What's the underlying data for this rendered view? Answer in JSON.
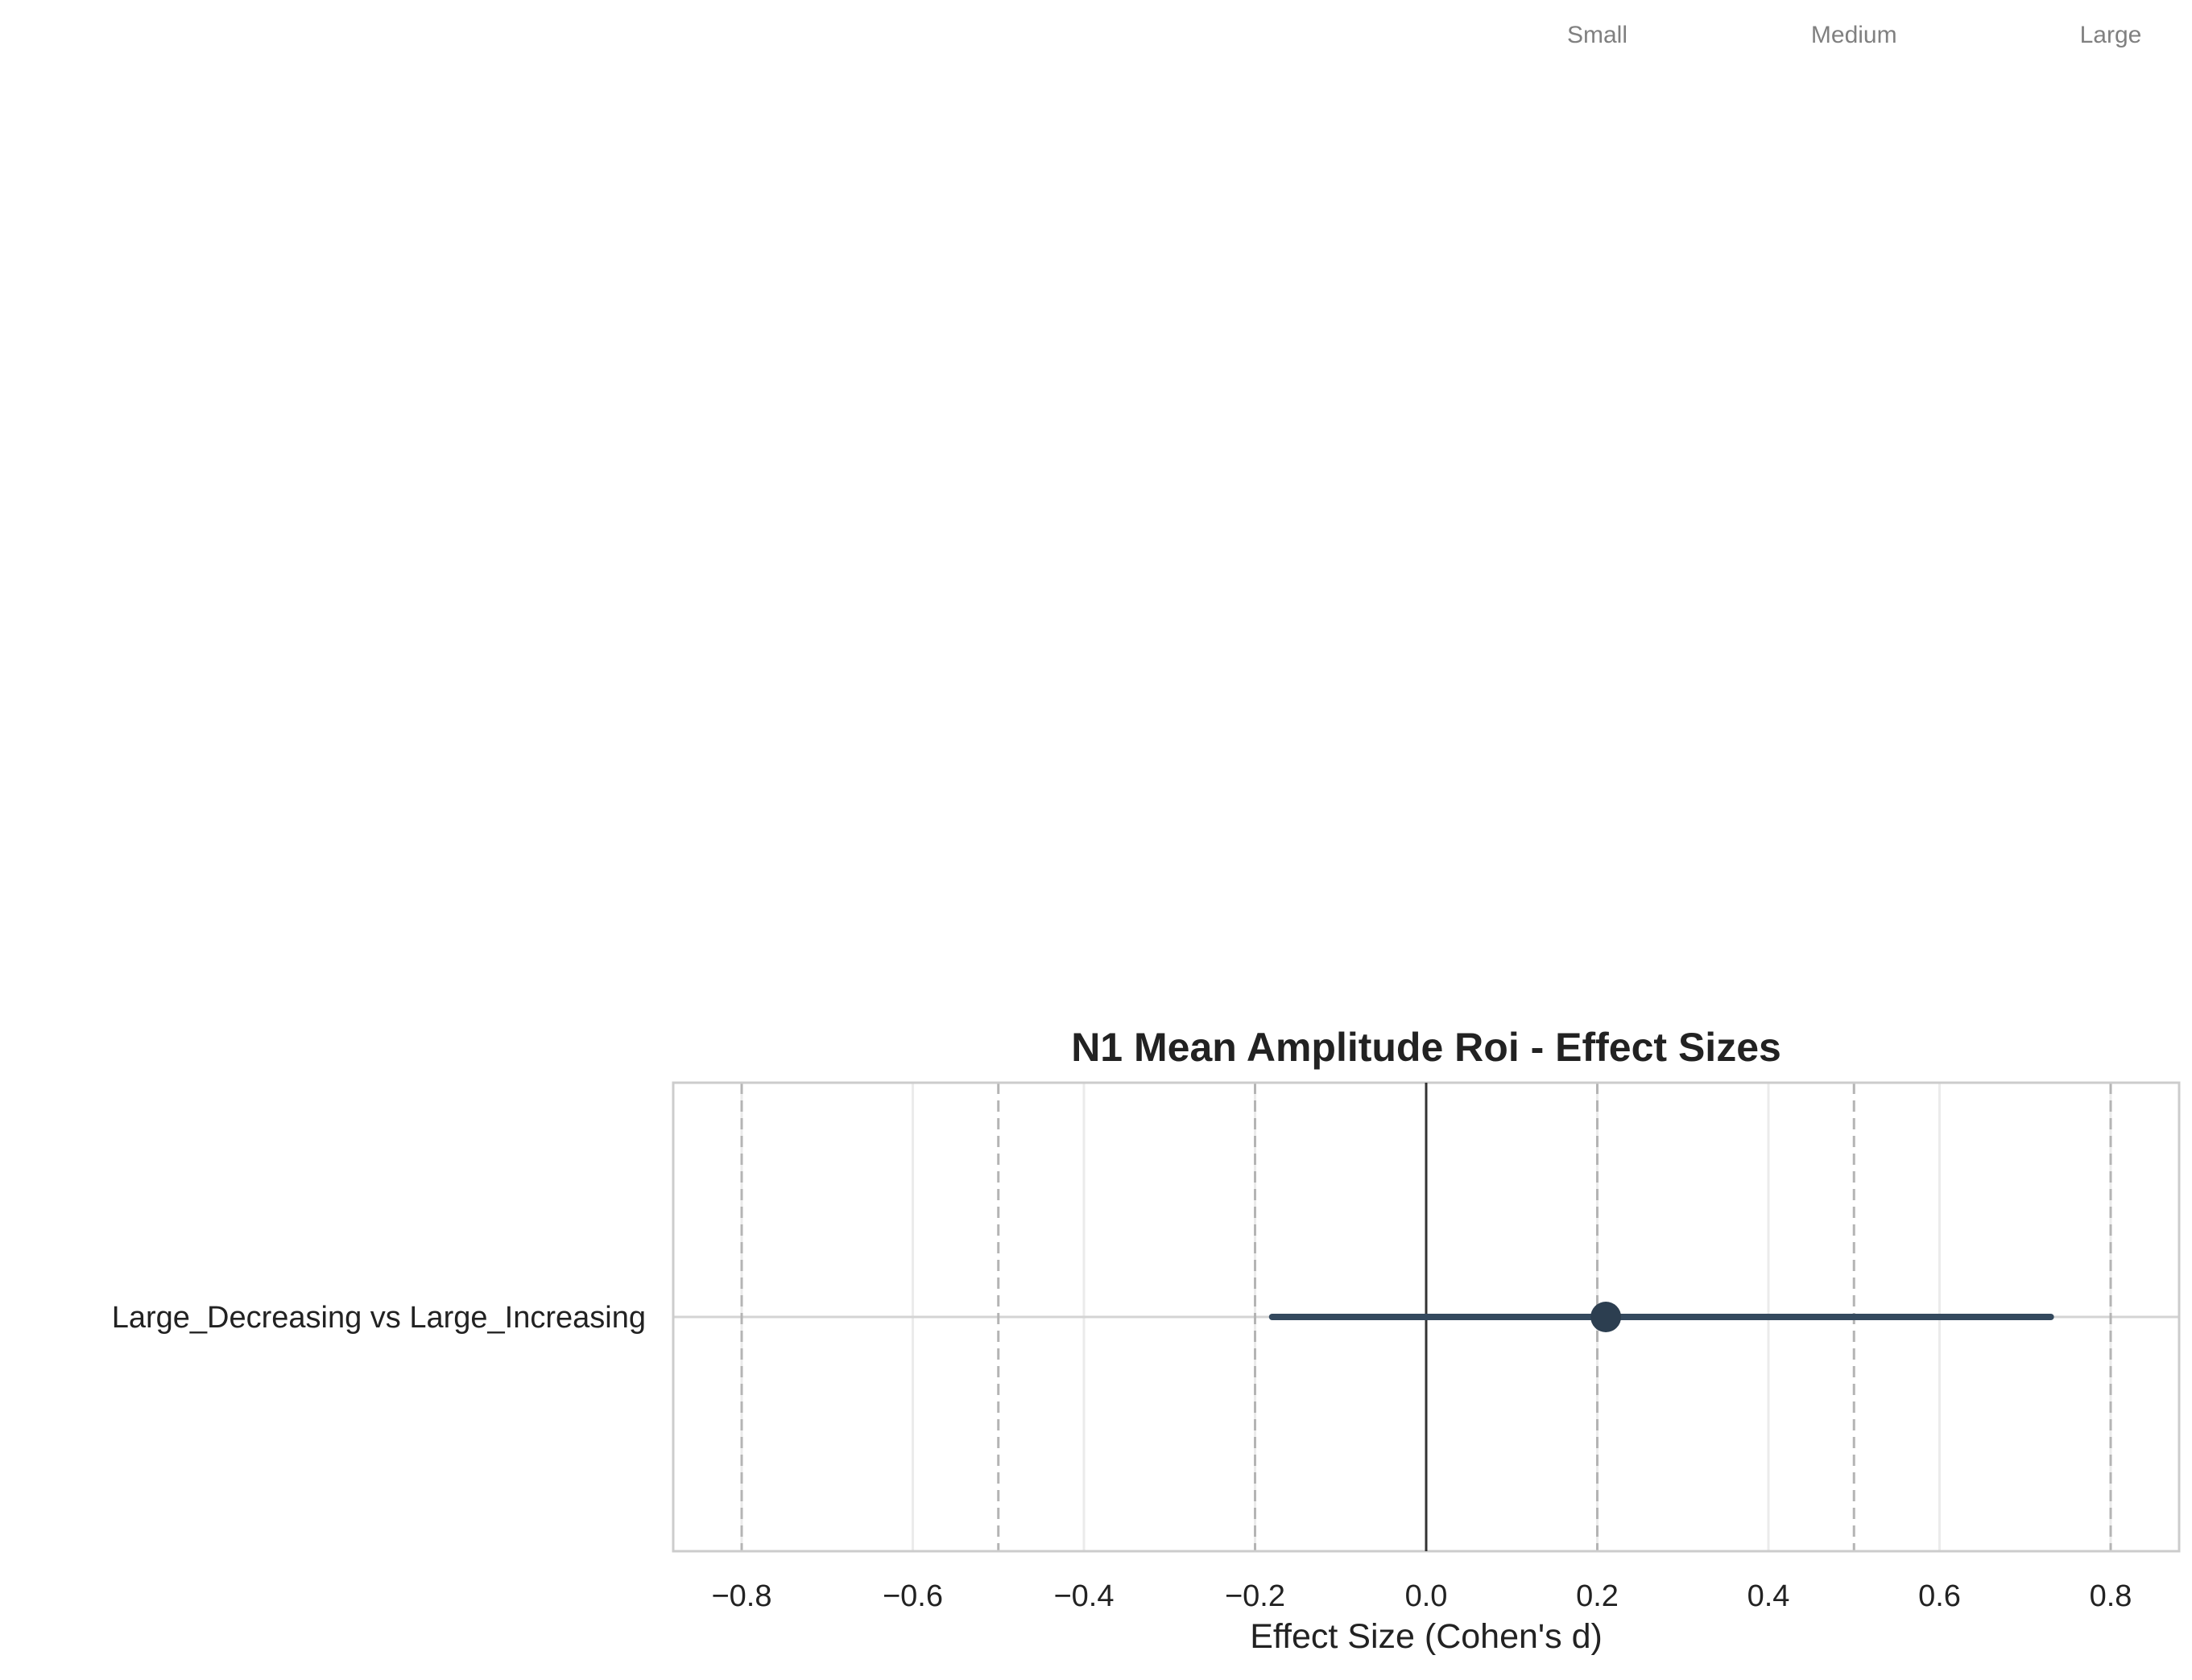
{
  "chart_data": {
    "type": "forest",
    "title": "N1 Mean Amplitude Roi - Effect Sizes",
    "xlabel": "Effect Size (Cohen's d)",
    "ylabel": "",
    "xlim": [
      -0.88,
      0.88
    ],
    "xticks": [
      -0.8,
      -0.6,
      -0.4,
      -0.2,
      0.0,
      0.2,
      0.4,
      0.6,
      0.8
    ],
    "xtick_labels": [
      "−0.8",
      "−0.6",
      "−0.4",
      "−0.2",
      "0.0",
      "0.2",
      "0.4",
      "0.6",
      "0.8"
    ],
    "grid": true,
    "zero_line": 0.0,
    "reference_lines": [
      -0.8,
      -0.5,
      -0.2,
      0.2,
      0.5,
      0.8
    ],
    "reference_labels": [
      {
        "x": 0.2,
        "label": "Small"
      },
      {
        "x": 0.5,
        "label": "Medium"
      },
      {
        "x": 0.8,
        "label": "Large"
      }
    ],
    "comparisons": [
      {
        "label": "Large_Decreasing vs Large_Increasing",
        "d": 0.21,
        "ci_low": -0.18,
        "ci_high": 0.73
      }
    ],
    "colors": {
      "point": "#2c3e50",
      "ci_line": "#34495e",
      "zero_line": "#333333",
      "reference_line": "#b4b4b4",
      "grid": "#ebebeb",
      "frame": "#cccccc",
      "annotation_text": "#808080",
      "text": "#222222"
    }
  }
}
